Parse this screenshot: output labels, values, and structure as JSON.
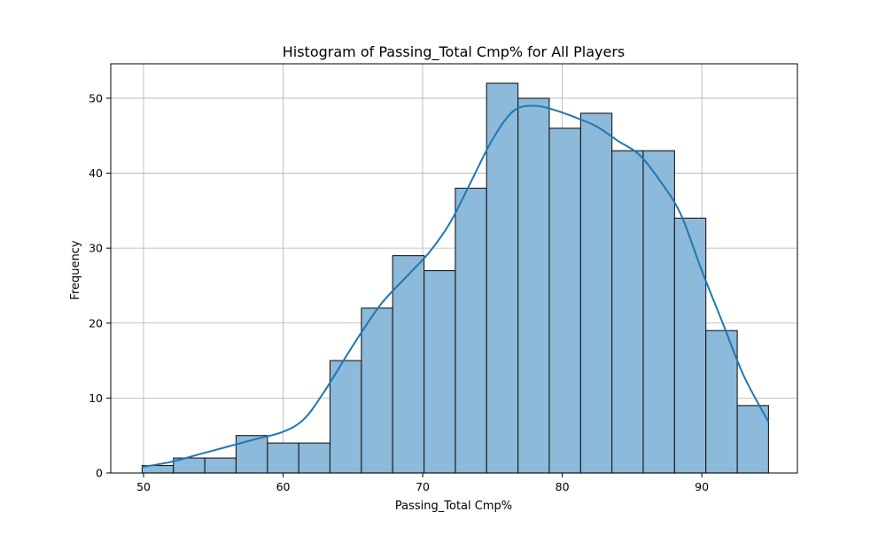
{
  "chart_data": {
    "type": "bar",
    "title": "Histogram of Passing_Total Cmp% for All Players",
    "xlabel": "Passing_Total Cmp%",
    "ylabel": "Frequency",
    "xlim": [
      47.65,
      96.85
    ],
    "ylim": [
      0,
      54.6
    ],
    "x_ticks": [
      50,
      60,
      70,
      80,
      90
    ],
    "y_ticks": [
      0,
      10,
      20,
      30,
      40,
      50
    ],
    "grid": true,
    "legend": "none",
    "bin_edges": [
      49.9,
      52.14,
      54.39,
      56.63,
      58.88,
      61.12,
      63.36,
      65.61,
      67.85,
      70.1,
      72.34,
      74.58,
      76.83,
      79.07,
      81.32,
      83.56,
      85.8,
      88.05,
      90.29,
      92.54,
      94.78
    ],
    "counts": [
      1,
      2,
      2,
      5,
      4,
      4,
      15,
      22,
      29,
      27,
      38,
      52,
      50,
      46,
      48,
      43,
      43,
      34,
      19,
      9
    ],
    "kde": {
      "x": [
        49.9,
        52.0,
        54.0,
        56.0,
        58.0,
        60.0,
        61.5,
        63.0,
        65.0,
        67.0,
        69.0,
        70.5,
        72.0,
        73.5,
        75.0,
        76.5,
        78.0,
        79.5,
        81.0,
        82.5,
        84.0,
        85.5,
        87.0,
        88.5,
        90.0,
        91.5,
        93.0,
        94.78
      ],
      "y": [
        0.8,
        1.5,
        2.5,
        3.5,
        4.5,
        5.5,
        7.2,
        11.0,
        17.0,
        22.5,
        26.5,
        29.5,
        33.5,
        39.0,
        44.5,
        48.3,
        49.0,
        48.4,
        47.4,
        46.2,
        44.3,
        42.5,
        39.0,
        34.5,
        27.0,
        20.0,
        13.0,
        6.8
      ]
    },
    "colors": {
      "bar_fill": "#8db9da",
      "bar_edge": "#1a1a1a",
      "kde_line": "#1f77b4",
      "grid": "#b0b0b0"
    }
  }
}
